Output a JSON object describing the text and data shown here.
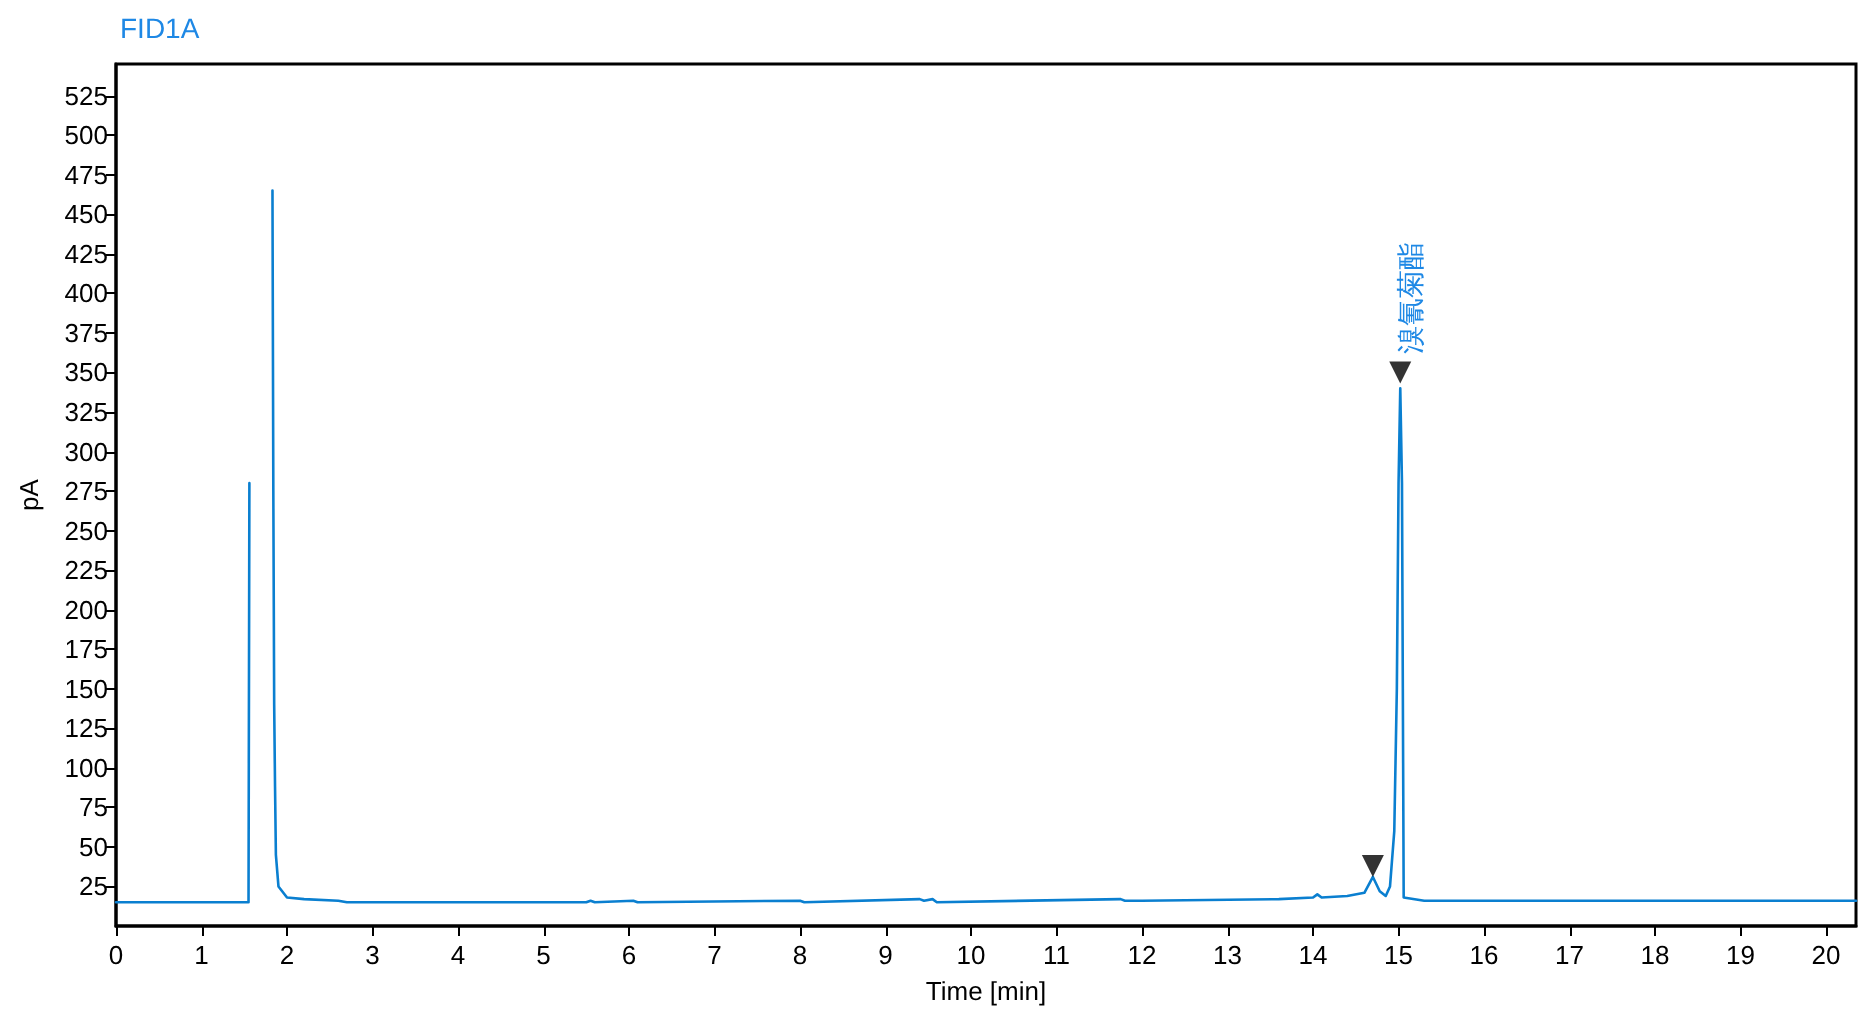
{
  "chart_data": {
    "type": "line",
    "title": "FID1A",
    "xlabel": "Time [min]",
    "ylabel": "pA",
    "xlim": [
      0,
      20.35
    ],
    "xticks": [
      0,
      1,
      2,
      3,
      4,
      5,
      6,
      7,
      8,
      9,
      10,
      11,
      12,
      13,
      14,
      15,
      16,
      17,
      18,
      19,
      20
    ],
    "ylim": [
      0,
      545
    ],
    "yticks": [
      25,
      50,
      75,
      100,
      125,
      150,
      175,
      200,
      225,
      250,
      275,
      300,
      325,
      350,
      375,
      400,
      425,
      450,
      475,
      500,
      525
    ],
    "grid": false,
    "marker": "none",
    "line_style": "solid",
    "annotations": [
      {
        "text": "溴氰菊酯",
        "x": 15.02,
        "y": 350
      }
    ],
    "series": [
      {
        "color": "#0a7fd0",
        "x": [
          0,
          1.55,
          1.56,
          1.58,
          1.82,
          1.83,
          1.84,
          1.85,
          1.86,
          1.87,
          1.9,
          2.0,
          2.2,
          2.6,
          2.7,
          5.5,
          5.55,
          5.6,
          6.05,
          6.1,
          8.0,
          8.05,
          9.4,
          9.45,
          9.55,
          9.6,
          11.75,
          11.8,
          12.0,
          13.6,
          14.0,
          14.05,
          14.1,
          14.4,
          14.6,
          14.7,
          14.78,
          14.85,
          14.9,
          14.95,
          14.98,
          15.0,
          15.02,
          15.04,
          15.05,
          15.06,
          15.3,
          15.5,
          20.35
        ],
        "values": [
          15,
          15,
          280,
          null,
          null,
          465,
          275,
          140,
          88,
          45,
          25,
          18,
          17,
          16,
          15,
          15,
          16,
          15,
          16,
          15,
          16,
          15,
          17,
          16,
          17,
          15,
          17,
          16,
          16,
          17,
          18,
          20,
          18,
          19,
          21,
          31,
          22,
          19,
          25,
          60,
          150,
          280,
          340,
          280,
          150,
          18,
          16,
          16,
          16
        ]
      },
      {
        "type": "scatter",
        "marker": "triangle",
        "color": "#000000",
        "x": [
          14.7,
          15.02
        ],
        "values": [
          38,
          350
        ]
      }
    ]
  }
}
